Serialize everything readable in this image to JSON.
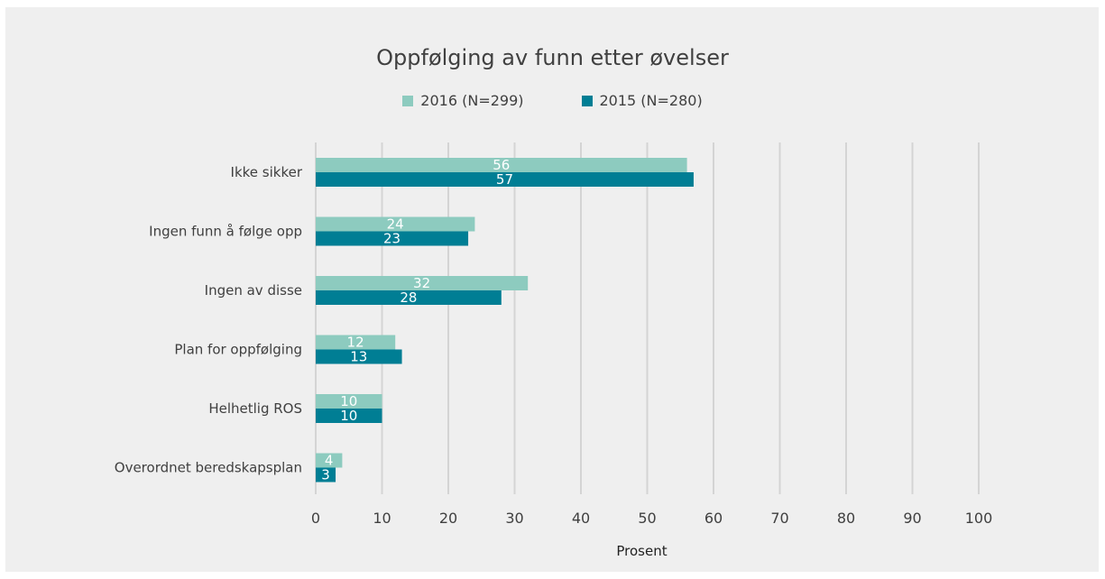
{
  "chart_data": {
    "type": "bar",
    "orientation": "horizontal",
    "title": "Oppfølging av funn etter øvelser",
    "xlabel": "Prosent",
    "ylabel": "",
    "xlim": [
      0,
      100
    ],
    "xticks": [
      0,
      10,
      20,
      30,
      40,
      50,
      60,
      70,
      80,
      90,
      100
    ],
    "grid": true,
    "legend_position": "top",
    "categories": [
      "Ikke sikker",
      "Ingen funn å følge opp",
      "Ingen av disse",
      "Plan for oppfølging",
      "Helhetlig ROS",
      "Overordnet beredskapsplan"
    ],
    "series": [
      {
        "name": "2016 (N=299)",
        "color": "#8dcbbf",
        "values": [
          56,
          24,
          32,
          12,
          10,
          4
        ]
      },
      {
        "name": "2015 (N=280)",
        "color": "#007e94",
        "values": [
          57,
          23,
          28,
          13,
          10,
          3
        ]
      }
    ]
  }
}
